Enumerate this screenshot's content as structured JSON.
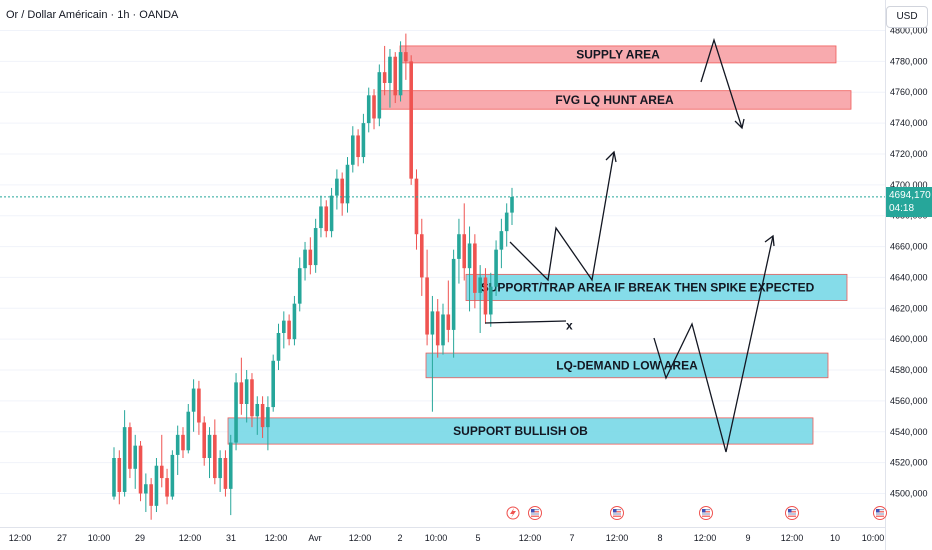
{
  "header": {
    "title": "Or / Dollar Américain · 1h · OANDA",
    "currency_label": "USD"
  },
  "price_tag": {
    "price": "4694,170",
    "countdown": "04:18"
  },
  "colors": {
    "up": "#26a69a",
    "down": "#ef5350",
    "supply_zone": "#f8a6aa",
    "demand_zone": "#7fdbe8",
    "current_price_line": "#26a69a"
  },
  "icons": [
    "lightning-icon",
    "flag-icon",
    "flag-icon",
    "flag-icon",
    "flag-icon",
    "flag-icon"
  ],
  "chart_data": {
    "type": "candlestick",
    "y_axis": {
      "ylim": [
        4480000,
        4805000
      ],
      "ticks": [
        "4800,000",
        "4780,000",
        "4760,000",
        "4740,000",
        "4720,000",
        "4700,000",
        "4680,000",
        "4660,000",
        "4640,000",
        "4620,000",
        "4600,000",
        "4580,000",
        "4560,000",
        "4540,000",
        "4520,000",
        "4500,000"
      ]
    },
    "x_axis": {
      "ticks": [
        "12:00",
        "27",
        "10:00",
        "29",
        "12:00",
        "31",
        "12:00",
        "Avr",
        "12:00",
        "2",
        "10:00",
        "5",
        "12:00",
        "7",
        "12:00",
        "8",
        "12:00",
        "9",
        "12:00",
        "10",
        "10:00"
      ]
    },
    "current_price": 4694170,
    "zones": [
      {
        "label": "SUPPLY AREA",
        "low": 4781000,
        "high": 4792000,
        "kind": "supply"
      },
      {
        "label": "FVG LQ HUNT AREA",
        "low": 4751000,
        "high": 4763000,
        "kind": "supply"
      },
      {
        "label": "SUPPORT/TRAP AREA IF BREAK THEN SPIKE EXPECTED",
        "low": 4627000,
        "high": 4644000,
        "kind": "demand"
      },
      {
        "label": "LQ-DEMAND LOW AREA",
        "low": 4577000,
        "high": 4593000,
        "kind": "demand"
      },
      {
        "label": "SUPPORT BULLISH OB",
        "low": 4534000,
        "high": 4551000,
        "kind": "demand"
      }
    ],
    "annotations": [
      {
        "label": "x",
        "price": 4611000
      }
    ],
    "candles": [
      [
        4500000,
        4532000,
        4498000,
        4525000
      ],
      [
        4525000,
        4530000,
        4495000,
        4503000
      ],
      [
        4503000,
        4556000,
        4500000,
        4545000
      ],
      [
        4545000,
        4548000,
        4512000,
        4518000
      ],
      [
        4518000,
        4540000,
        4505000,
        4533000
      ],
      [
        4533000,
        4536000,
        4497000,
        4502000
      ],
      [
        4502000,
        4515000,
        4490000,
        4508000
      ],
      [
        4508000,
        4512000,
        4485000,
        4494000
      ],
      [
        4494000,
        4525000,
        4490000,
        4520000
      ],
      [
        4520000,
        4540000,
        4506000,
        4512000
      ],
      [
        4512000,
        4518000,
        4495000,
        4500000
      ],
      [
        4500000,
        4530000,
        4498000,
        4527000
      ],
      [
        4527000,
        4546000,
        4514000,
        4540000
      ],
      [
        4540000,
        4545000,
        4525000,
        4530000
      ],
      [
        4530000,
        4560000,
        4528000,
        4555000
      ],
      [
        4555000,
        4576000,
        4542000,
        4570000
      ],
      [
        4570000,
        4575000,
        4540000,
        4548000
      ],
      [
        4548000,
        4552000,
        4520000,
        4525000
      ],
      [
        4525000,
        4545000,
        4512000,
        4540000
      ],
      [
        4540000,
        4550000,
        4508000,
        4512000
      ],
      [
        4512000,
        4530000,
        4503000,
        4525000
      ],
      [
        4525000,
        4530000,
        4500000,
        4505000
      ],
      [
        4505000,
        4540000,
        4488000,
        4535000
      ],
      [
        4535000,
        4580000,
        4530000,
        4574000
      ],
      [
        4574000,
        4590000,
        4553000,
        4560000
      ],
      [
        4560000,
        4582000,
        4548000,
        4576000
      ],
      [
        4576000,
        4580000,
        4545000,
        4552000
      ],
      [
        4552000,
        4565000,
        4540000,
        4560000
      ],
      [
        4560000,
        4565000,
        4538000,
        4545000
      ],
      [
        4545000,
        4565000,
        4530000,
        4558000
      ],
      [
        4558000,
        4592000,
        4555000,
        4588000
      ],
      [
        4588000,
        4612000,
        4582000,
        4606000
      ],
      [
        4606000,
        4620000,
        4596000,
        4614000
      ],
      [
        4614000,
        4618000,
        4598000,
        4602000
      ],
      [
        4602000,
        4630000,
        4598000,
        4625000
      ],
      [
        4625000,
        4655000,
        4620000,
        4648000
      ],
      [
        4648000,
        4665000,
        4640000,
        4660000
      ],
      [
        4660000,
        4668000,
        4644000,
        4650000
      ],
      [
        4650000,
        4680000,
        4645000,
        4674000
      ],
      [
        4674000,
        4695000,
        4668000,
        4688000
      ],
      [
        4688000,
        4692000,
        4668000,
        4672000
      ],
      [
        4672000,
        4700000,
        4668000,
        4695000
      ],
      [
        4695000,
        4712000,
        4686000,
        4706000
      ],
      [
        4706000,
        4710000,
        4682000,
        4690000
      ],
      [
        4690000,
        4720000,
        4684000,
        4715000
      ],
      [
        4715000,
        4740000,
        4710000,
        4734000
      ],
      [
        4734000,
        4738000,
        4714000,
        4720000
      ],
      [
        4720000,
        4748000,
        4716000,
        4742000
      ],
      [
        4742000,
        4765000,
        4736000,
        4760000
      ],
      [
        4760000,
        4764000,
        4738000,
        4745000
      ],
      [
        4745000,
        4780000,
        4740000,
        4775000
      ],
      [
        4775000,
        4792000,
        4760000,
        4768000
      ],
      [
        4768000,
        4790000,
        4752000,
        4785000
      ],
      [
        4785000,
        4788000,
        4755000,
        4760000
      ],
      [
        4760000,
        4795000,
        4756000,
        4788000
      ],
      [
        4788000,
        4800000,
        4770000,
        4782000
      ],
      [
        4782000,
        4786000,
        4702000,
        4706000
      ],
      [
        4706000,
        4712000,
        4660000,
        4670000
      ],
      [
        4670000,
        4680000,
        4630000,
        4642000
      ],
      [
        4642000,
        4660000,
        4598000,
        4605000
      ],
      [
        4605000,
        4630000,
        4555000,
        4620000
      ],
      [
        4620000,
        4628000,
        4590000,
        4598000
      ],
      [
        4598000,
        4625000,
        4592000,
        4618000
      ],
      [
        4618000,
        4640000,
        4600000,
        4608000
      ],
      [
        4608000,
        4660000,
        4590000,
        4654000
      ],
      [
        4654000,
        4680000,
        4638000,
        4670000
      ],
      [
        4670000,
        4690000,
        4640000,
        4648000
      ],
      [
        4648000,
        4675000,
        4620000,
        4664000
      ],
      [
        4664000,
        4670000,
        4622000,
        4632000
      ],
      [
        4632000,
        4650000,
        4606000,
        4642000
      ],
      [
        4642000,
        4648000,
        4612000,
        4618000
      ],
      [
        4618000,
        4645000,
        4610000,
        4636000
      ],
      [
        4636000,
        4666000,
        4630000,
        4660000
      ],
      [
        4660000,
        4680000,
        4648000,
        4672000
      ],
      [
        4672000,
        4690000,
        4662000,
        4684000
      ],
      [
        4684000,
        4700000,
        4676000,
        4694170
      ]
    ]
  }
}
